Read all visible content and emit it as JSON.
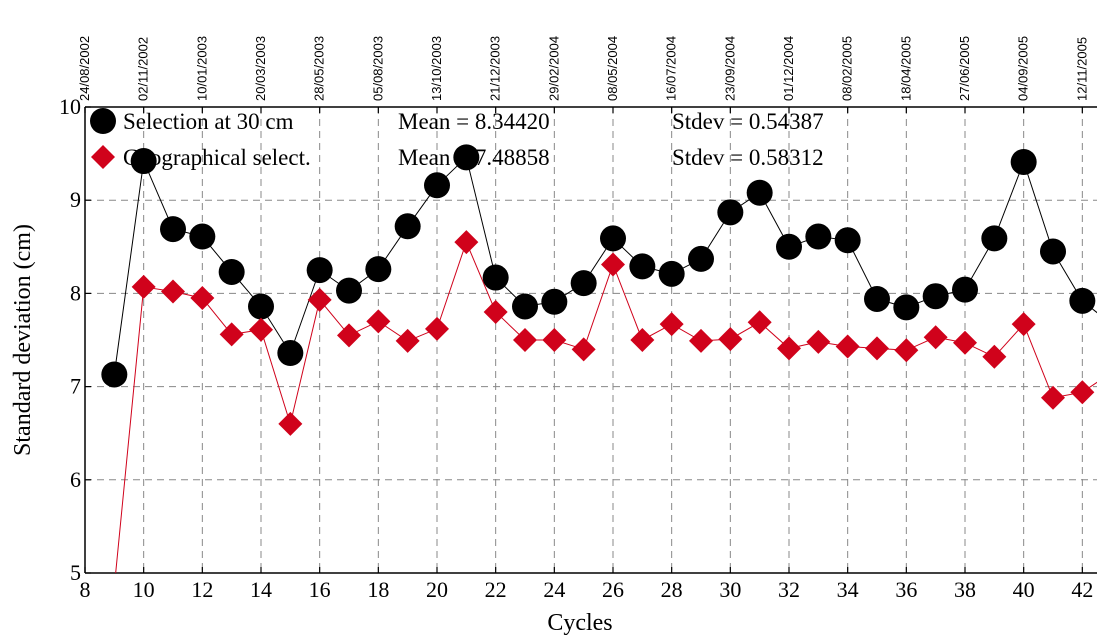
{
  "chart_data": {
    "type": "scatter",
    "xlabel": "Cycles",
    "ylabel": "Standard deviation (cm)",
    "xlim": [
      8,
      42.5
    ],
    "ylim": [
      5,
      10
    ],
    "x_ticks": [
      8,
      10,
      12,
      14,
      16,
      18,
      20,
      22,
      24,
      26,
      28,
      30,
      32,
      34,
      36,
      38,
      40,
      42
    ],
    "y_ticks": [
      5,
      6,
      7,
      8,
      9,
      10
    ],
    "grid": true,
    "date_ticks": [
      {
        "x": 8,
        "label": "24/08/2002"
      },
      {
        "x": 10,
        "label": "02/11/2002"
      },
      {
        "x": 12,
        "label": "10/01/2003"
      },
      {
        "x": 14,
        "label": "20/03/2003"
      },
      {
        "x": 16,
        "label": "28/05/2003"
      },
      {
        "x": 18,
        "label": "05/08/2003"
      },
      {
        "x": 20,
        "label": "13/10/2003"
      },
      {
        "x": 22,
        "label": "21/12/2003"
      },
      {
        "x": 24,
        "label": "29/02/2004"
      },
      {
        "x": 26,
        "label": "08/05/2004"
      },
      {
        "x": 28,
        "label": "16/07/2004"
      },
      {
        "x": 30,
        "label": "23/09/2004"
      },
      {
        "x": 32,
        "label": "01/12/2004"
      },
      {
        "x": 34,
        "label": "08/02/2005"
      },
      {
        "x": 36,
        "label": "18/04/2005"
      },
      {
        "x": 38,
        "label": "27/06/2005"
      },
      {
        "x": 40,
        "label": "04/09/2005"
      },
      {
        "x": 42,
        "label": "12/11/2005"
      }
    ],
    "series": [
      {
        "name": "Selection at 30 cm",
        "marker": "circle",
        "color": "#000000",
        "line_color": "#000000",
        "mean_text": "Mean = 8.34420",
        "stdev_text": "Stdev = 0.54387",
        "x": [
          9,
          10,
          11,
          12,
          13,
          14,
          15,
          16,
          17,
          18,
          19,
          20,
          21,
          22,
          23,
          24,
          25,
          26,
          27,
          28,
          29,
          30,
          31,
          32,
          33,
          34,
          35,
          36,
          37,
          38,
          39,
          40,
          41,
          42,
          43
        ],
        "y": [
          7.13,
          9.42,
          8.69,
          8.61,
          8.23,
          7.86,
          7.36,
          8.25,
          8.03,
          8.26,
          8.72,
          9.16,
          9.46,
          8.17,
          7.86,
          7.91,
          8.11,
          8.59,
          8.29,
          8.21,
          8.37,
          8.87,
          9.08,
          8.5,
          8.61,
          8.57,
          7.94,
          7.85,
          7.97,
          8.04,
          8.59,
          9.41,
          8.45,
          7.92,
          7.67
        ]
      },
      {
        "name": "Geographical select.",
        "marker": "diamond",
        "color": "#d0021b",
        "line_color": "#d0021b",
        "mean_text": "Mean = 7.48858",
        "stdev_text": "Stdev = 0.58312",
        "x": [
          9,
          10,
          11,
          12,
          13,
          14,
          15,
          16,
          17,
          18,
          19,
          20,
          21,
          22,
          23,
          24,
          25,
          26,
          27,
          28,
          29,
          30,
          31,
          32,
          33,
          34,
          35,
          36,
          37,
          38,
          39,
          40,
          41,
          42,
          43
        ],
        "y": [
          4.85,
          8.07,
          8.02,
          7.95,
          7.56,
          7.61,
          6.6,
          7.93,
          7.55,
          7.7,
          7.49,
          7.62,
          8.55,
          7.8,
          7.5,
          7.5,
          7.4,
          8.31,
          7.5,
          7.67,
          7.49,
          7.51,
          7.69,
          7.41,
          7.48,
          7.43,
          7.41,
          7.39,
          7.53,
          7.47,
          7.32,
          7.67,
          6.88,
          6.94,
          7.15
        ]
      }
    ]
  }
}
